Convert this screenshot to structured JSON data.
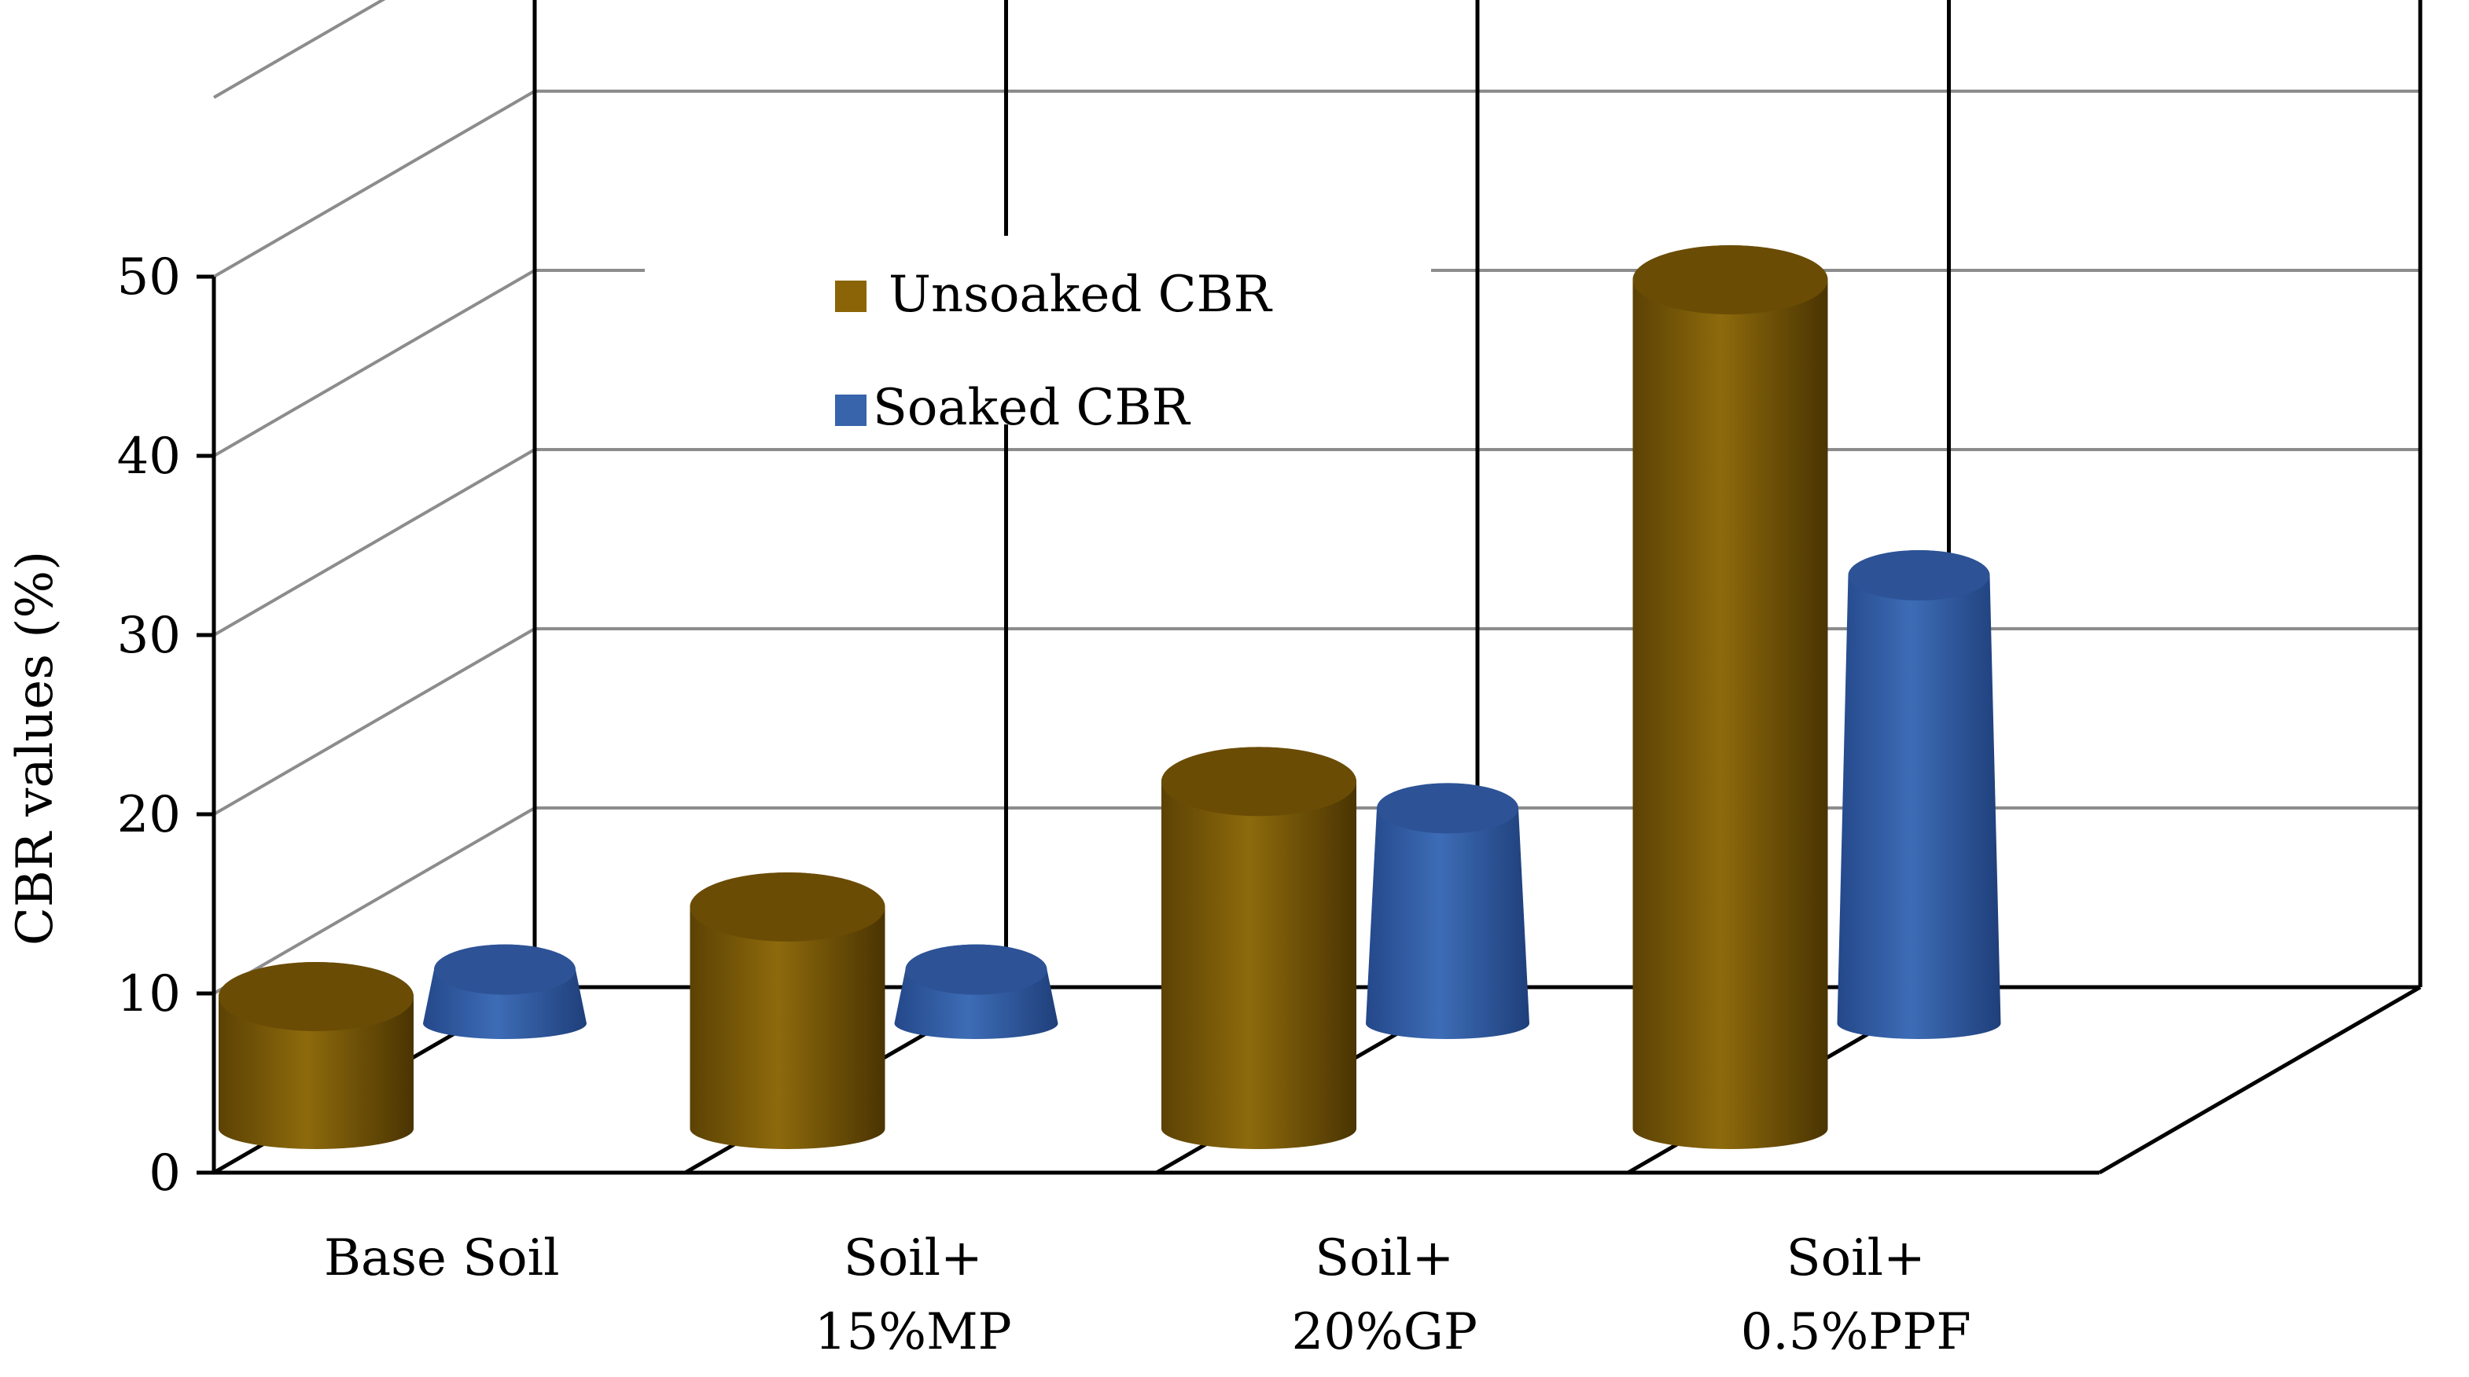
{
  "chart_data": {
    "type": "bar",
    "title": "",
    "xlabel": "",
    "ylabel": "CBR values (%)",
    "ylim": [
      0,
      50
    ],
    "yticks": [
      0,
      10,
      20,
      30,
      40,
      50
    ],
    "grid": true,
    "legend_position": "top-center",
    "categories": [
      [
        "Base Soil"
      ],
      [
        "Soil+",
        "15%MP"
      ],
      [
        "Soil+",
        "20%GP"
      ],
      [
        "Soil+",
        "0.5%PPF"
      ]
    ],
    "series": [
      {
        "name": "Unsoaked CBR",
        "color": "#8a6406",
        "shape": "cylinder",
        "values": [
          10,
          15,
          22,
          50
        ]
      },
      {
        "name": "Soaked CBR",
        "color": "#3764ab",
        "shape": "cone",
        "values": [
          3,
          3,
          12,
          25
        ]
      }
    ]
  }
}
